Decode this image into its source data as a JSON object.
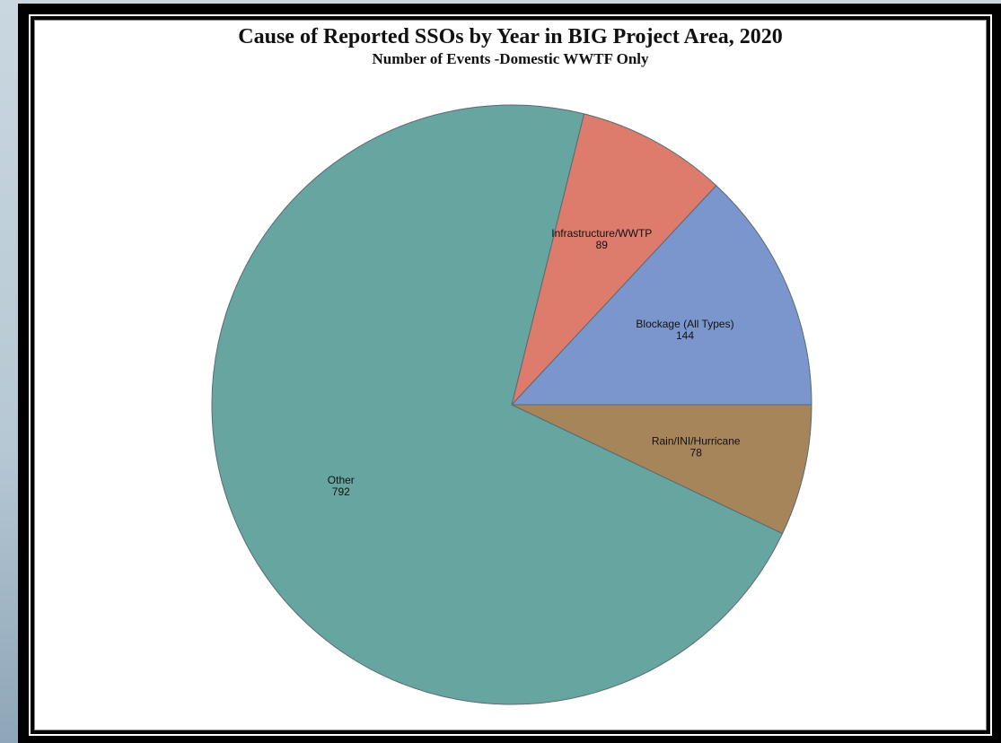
{
  "chart_data": {
    "type": "pie",
    "title": "Cause of Reported SSOs by Year in BIG Project Area, 2020",
    "subtitle": "Number of Events -Domestic WWTF Only",
    "categories": [
      "Blockage (All Types)",
      "Infrastructure/WWTP",
      "Other",
      "Rain/INI/Hurricane"
    ],
    "values": [
      144,
      89,
      792,
      78
    ],
    "colors": [
      "#7b96cc",
      "#dd7c6c",
      "#67a5a0",
      "#a6855a"
    ],
    "start_angle_deg": 0,
    "direction": "counterclockwise",
    "labels_inside": true
  },
  "colors": {
    "slice_stroke": "#5a6a70",
    "frame": "#000000",
    "panel": "#ffffff"
  }
}
